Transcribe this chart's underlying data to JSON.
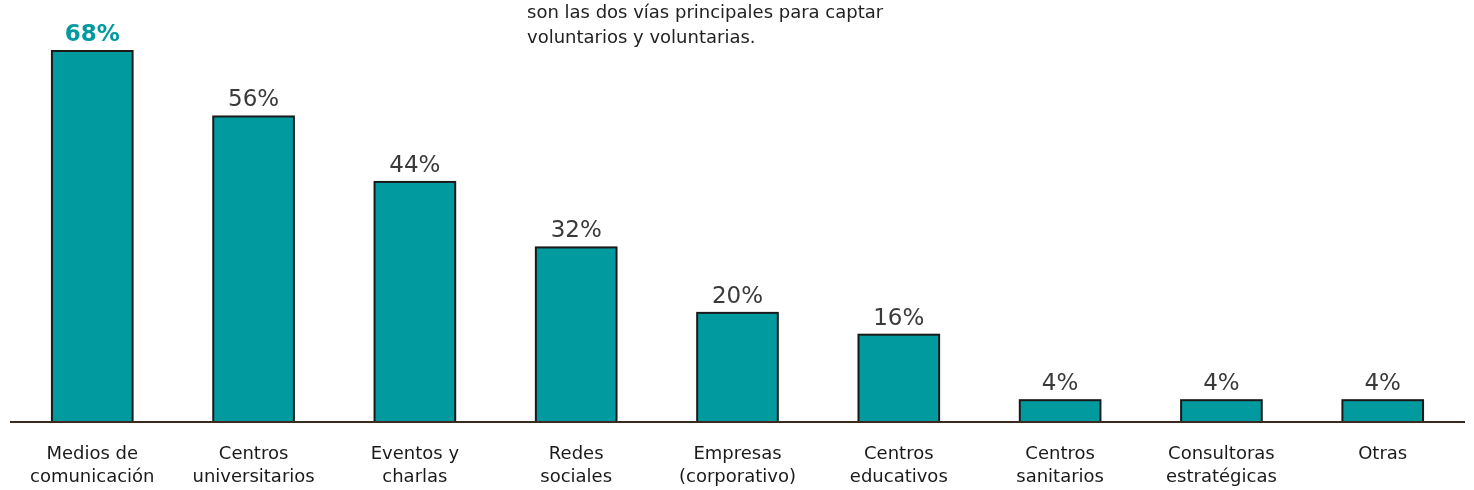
{
  "chart_data": {
    "type": "bar",
    "categories": [
      "Medios de comunicación",
      "Centros universitarios",
      "Eventos y charlas",
      "Redes sociales",
      "Empresas (corporativo)",
      "Centros educativos",
      "Centros sanitarios",
      "Consultoras estratégicas",
      "Otras"
    ],
    "values": [
      68,
      56,
      44,
      32,
      20,
      16,
      4,
      4,
      4
    ],
    "value_labels": [
      "68%",
      "56%",
      "44%",
      "32%",
      "20%",
      "16%",
      "4%",
      "4%",
      "4%"
    ],
    "color": "#009a9f",
    "annotations": [
      "son las dos vías principales para captar voluntarios y voluntarias."
    ]
  }
}
